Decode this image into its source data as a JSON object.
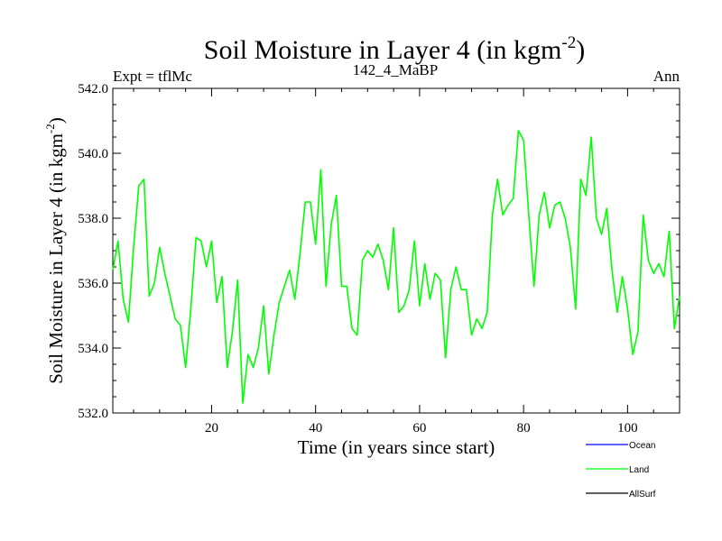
{
  "chart_data": {
    "type": "line",
    "title": "Soil Moisture in Layer 4 (in kgm",
    "title_sup": "-2",
    "title_close": ")",
    "subtitle_left": "Expt = tflMc",
    "subtitle_center": "142_4_MaBP",
    "subtitle_right": "Ann",
    "xlabel": "Time (in years since start)",
    "ylabel": "Soil Moisture in Layer 4 (in kgm",
    "ylabel_sup": "-2",
    "ylabel_close": ")",
    "xlim": [
      1,
      110
    ],
    "ylim": [
      532.0,
      542.0
    ],
    "xticks": [
      20,
      40,
      60,
      80,
      100
    ],
    "xtick_labels": [
      "20",
      "40",
      "60",
      "80",
      "100"
    ],
    "yticks": [
      532,
      534,
      536,
      538,
      540,
      542
    ],
    "ytick_labels": [
      "532.0",
      "534.0",
      "536.0",
      "538.0",
      "540.0",
      "542.0"
    ],
    "legend": [
      {
        "name": "Ocean",
        "color": "#0000ff"
      },
      {
        "name": "Land",
        "color": "#00ff00"
      },
      {
        "name": "AllSurf",
        "color": "#000000"
      }
    ],
    "series": [
      {
        "name": "Land",
        "color": "#00ff00",
        "x": [
          1,
          2,
          3,
          4,
          5,
          6,
          7,
          8,
          9,
          10,
          11,
          12,
          13,
          14,
          15,
          16,
          17,
          18,
          19,
          20,
          21,
          22,
          23,
          24,
          25,
          26,
          27,
          28,
          29,
          30,
          31,
          32,
          33,
          34,
          35,
          36,
          37,
          38,
          39,
          40,
          41,
          42,
          43,
          44,
          45,
          46,
          47,
          48,
          49,
          50,
          51,
          52,
          53,
          54,
          55,
          56,
          57,
          58,
          59,
          60,
          61,
          62,
          63,
          64,
          65,
          66,
          67,
          68,
          69,
          70,
          71,
          72,
          73,
          74,
          75,
          76,
          77,
          78,
          79,
          80,
          81,
          82,
          83,
          84,
          85,
          86,
          87,
          88,
          89,
          90,
          91,
          92,
          93,
          94,
          95,
          96,
          97,
          98,
          99,
          100,
          101,
          102,
          103,
          104,
          105,
          106,
          107,
          108,
          109,
          110
        ],
        "values": [
          536.4,
          537.3,
          535.5,
          534.8,
          537.1,
          539.0,
          539.2,
          535.6,
          536.0,
          537.1,
          536.3,
          535.6,
          534.9,
          534.7,
          533.4,
          535.2,
          537.4,
          537.3,
          536.5,
          537.3,
          535.4,
          536.2,
          533.4,
          534.5,
          536.1,
          532.3,
          533.8,
          533.4,
          534.0,
          535.3,
          533.2,
          534.4,
          535.4,
          535.9,
          536.4,
          535.5,
          536.9,
          538.5,
          538.5,
          537.2,
          539.5,
          535.9,
          537.8,
          538.7,
          535.9,
          535.9,
          534.6,
          534.4,
          536.7,
          537.0,
          536.8,
          537.2,
          536.7,
          535.8,
          537.7,
          535.1,
          535.3,
          535.8,
          537.3,
          535.3,
          536.6,
          535.5,
          536.3,
          536.1,
          533.7,
          535.8,
          536.5,
          535.8,
          535.8,
          534.4,
          534.9,
          534.6,
          535.1,
          538.1,
          539.2,
          538.1,
          538.4,
          538.6,
          540.7,
          540.4,
          538.1,
          535.9,
          538.1,
          538.8,
          537.7,
          538.4,
          538.5,
          538.0,
          537.1,
          535.2,
          539.2,
          538.7,
          540.5,
          538.0,
          537.5,
          538.3,
          536.4,
          535.1,
          536.2,
          535.2,
          533.8,
          534.5,
          538.1,
          536.7,
          536.3,
          536.6,
          536.2,
          537.6,
          534.6,
          535.6
        ]
      }
    ]
  }
}
